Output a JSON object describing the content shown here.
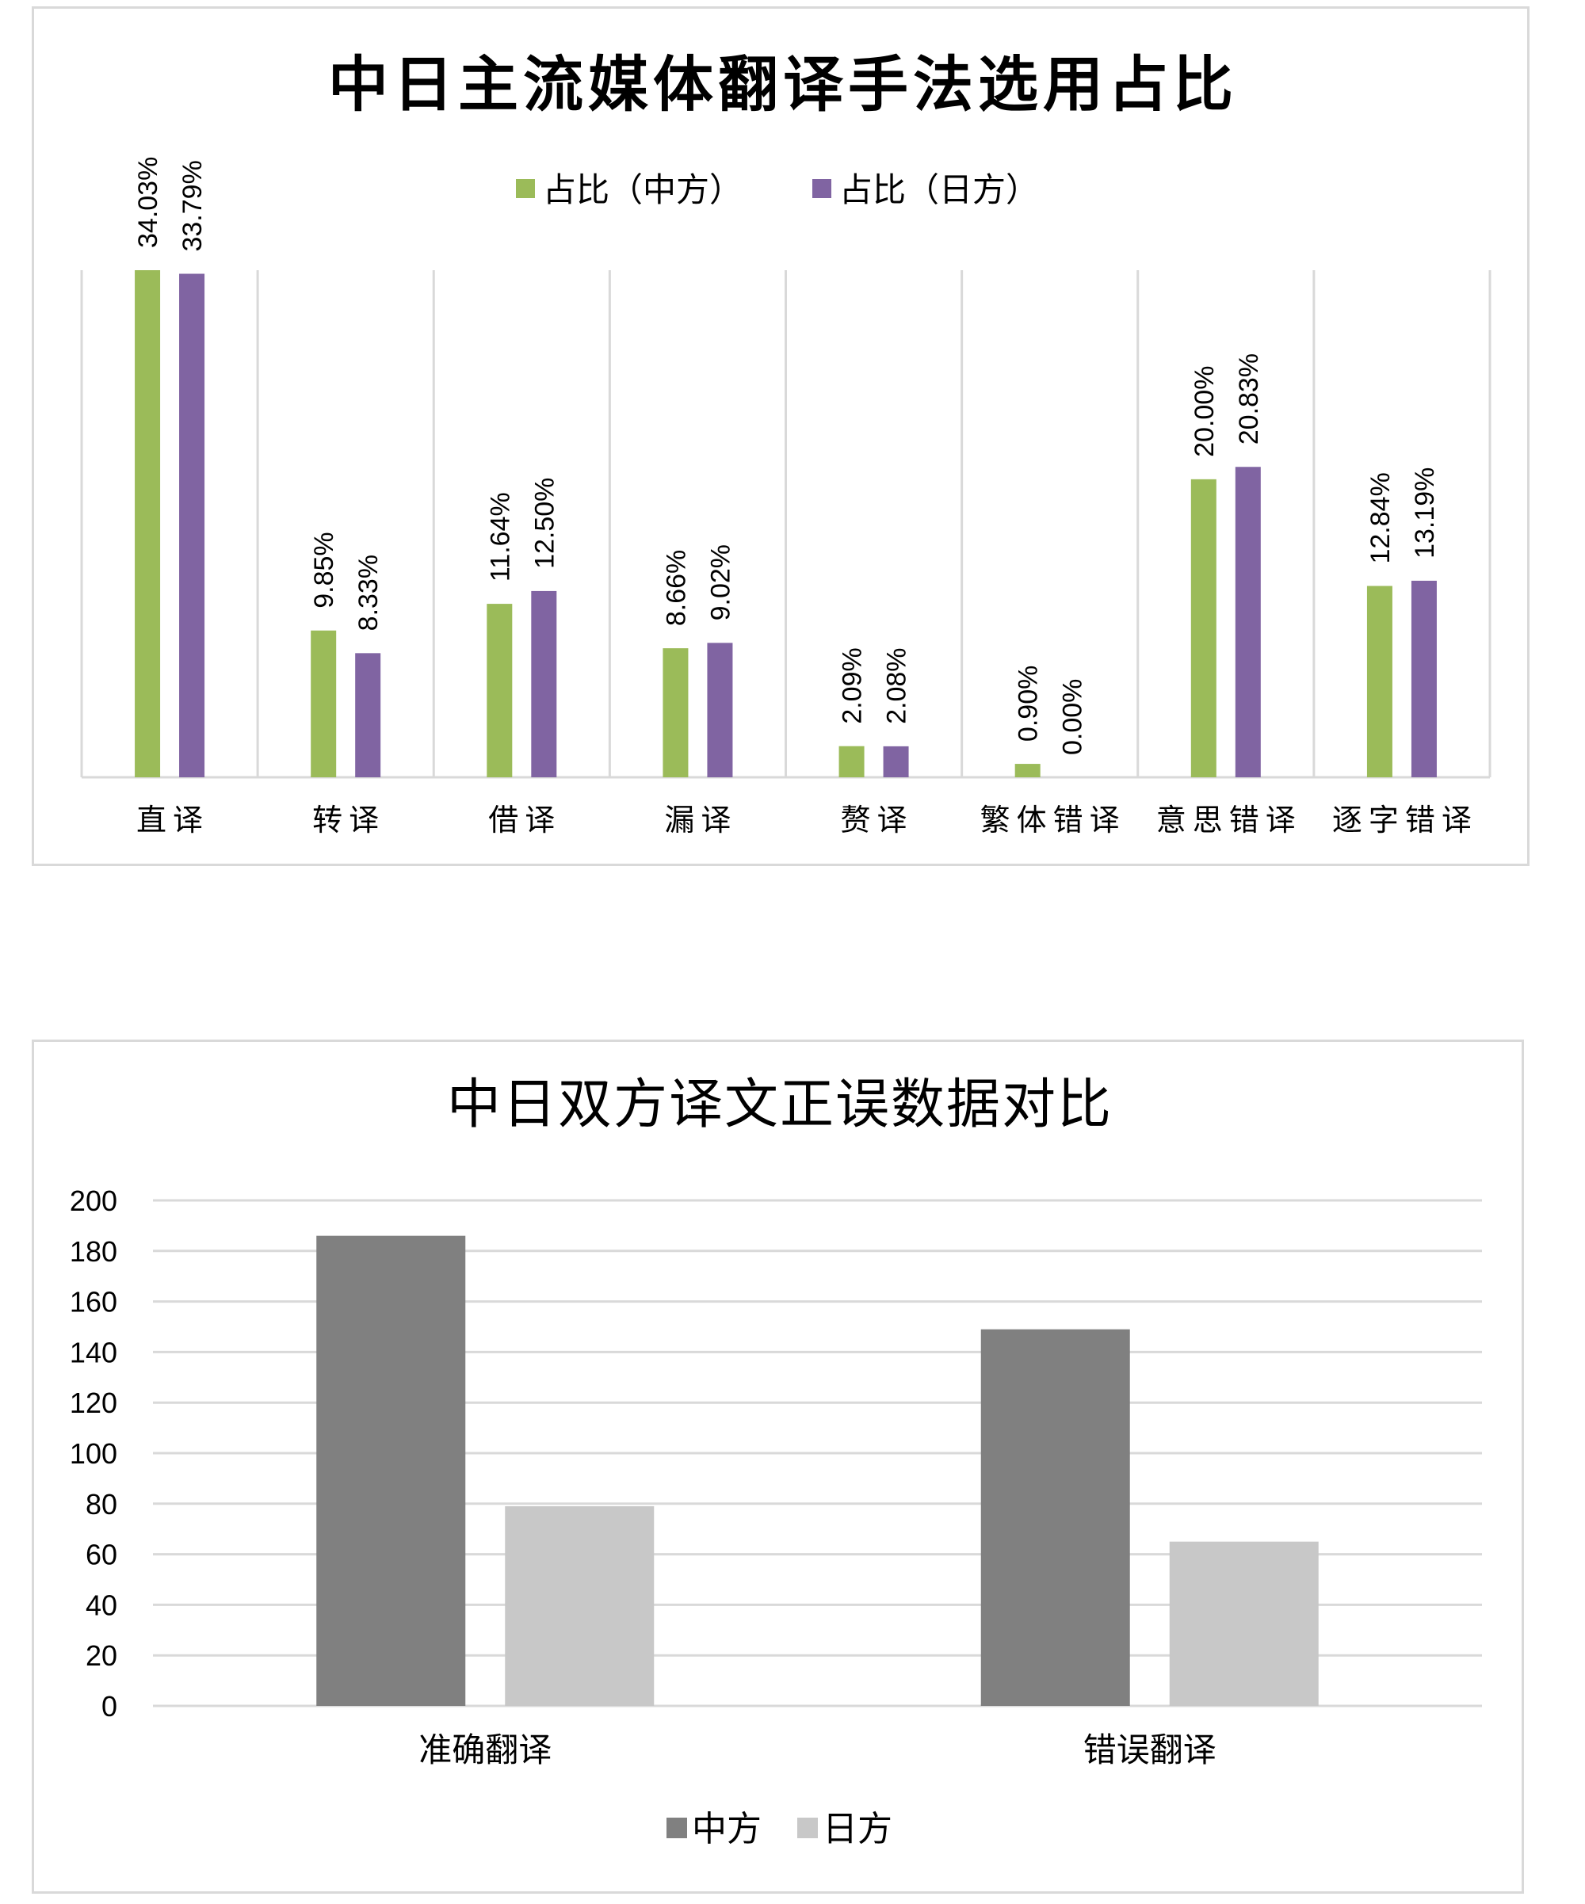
{
  "chart_data": [
    {
      "type": "bar",
      "title": "中日主流媒体翻译手法选用占比",
      "categories": [
        "直译",
        "转译",
        "借译",
        "漏译",
        "赘译",
        "繁体错译",
        "意思错译",
        "逐字错译"
      ],
      "series": [
        {
          "name": "占比（中方）",
          "color": "#9bbb59",
          "values": [
            34.03,
            9.85,
            11.64,
            8.66,
            2.09,
            0.9,
            20.0,
            12.84
          ],
          "labels": [
            "34.03%",
            "9.85%",
            "11.64%",
            "8.66%",
            "2.09%",
            "0.90%",
            "20.00%",
            "12.84%"
          ]
        },
        {
          "name": "占比（日方）",
          "color": "#8064a2",
          "values": [
            33.79,
            8.33,
            12.5,
            9.02,
            2.08,
            0.0,
            20.83,
            13.19
          ],
          "labels": [
            "33.79%",
            "8.33%",
            "12.50%",
            "9.02%",
            "2.08%",
            "0.00%",
            "20.83%",
            "13.19%"
          ]
        }
      ],
      "ylim": [
        0,
        40
      ],
      "legend": "top",
      "grid": "vertical category dividers"
    },
    {
      "type": "bar",
      "title": "中日双方译文正误数据对比",
      "categories": [
        "准确翻译",
        "错误翻译"
      ],
      "series": [
        {
          "name": "中方",
          "color": "#808080",
          "values": [
            186,
            149
          ]
        },
        {
          "name": "日方",
          "color": "#c8c8c8",
          "values": [
            79,
            65
          ]
        }
      ],
      "ylim": [
        0,
        200
      ],
      "yticks": [
        "0",
        "20",
        "40",
        "60",
        "80",
        "100",
        "120",
        "140",
        "160",
        "180",
        "200"
      ],
      "legend": "bottom",
      "grid": true
    }
  ]
}
